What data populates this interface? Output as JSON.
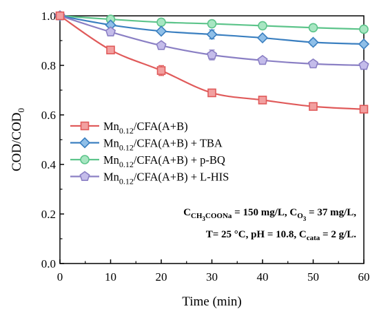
{
  "chart_data": {
    "type": "line",
    "xlabel": "Time (min)",
    "ylabel": "COD/COD",
    "ylabel_sub": "0",
    "xlim": [
      0,
      60
    ],
    "ylim": [
      0.0,
      1.0
    ],
    "x_ticks": [
      "0",
      "10",
      "20",
      "30",
      "40",
      "50",
      "60"
    ],
    "y_ticks": [
      "0.0",
      "0.2",
      "0.4",
      "0.6",
      "0.8",
      "1.0"
    ],
    "grid": false,
    "legend_placement": "center-left",
    "x": [
      0,
      10,
      20,
      30,
      40,
      50,
      60
    ],
    "series": [
      {
        "name": "Mn0.12/CFA(A+B)",
        "legend": {
          "pre": "Mn",
          "sub": "0.12",
          "post": "/CFA(A+B)"
        },
        "marker": "square",
        "color": "#e05a5a",
        "fill": "#f2a0a0",
        "values": [
          1.0,
          0.862,
          0.779,
          0.689,
          0.66,
          0.634,
          0.623
        ],
        "errors": [
          0,
          0.012,
          0.02,
          0.012,
          0.01,
          0.015,
          0.01
        ]
      },
      {
        "name": "Mn0.12/CFA(A+B) + TBA",
        "legend": {
          "pre": "Mn",
          "sub": "0.12",
          "post": "/CFA(A+B) + TBA"
        },
        "marker": "diamond",
        "color": "#3a7fc0",
        "fill": "#8fbfe8",
        "values": [
          1.0,
          0.963,
          0.938,
          0.925,
          0.911,
          0.893,
          0.886
        ],
        "errors": [
          0,
          0.008,
          0.01,
          0.018,
          0.01,
          0.012,
          0.008
        ]
      },
      {
        "name": "Mn0.12/CFA(A+B) + p-BQ",
        "legend": {
          "pre": "Mn",
          "sub": "0.12",
          "post": "/CFA(A+B) + p-BQ"
        },
        "marker": "circle",
        "color": "#5cc48a",
        "fill": "#a8e6c2",
        "values": [
          1.0,
          0.986,
          0.974,
          0.968,
          0.96,
          0.952,
          0.946
        ],
        "errors": [
          0,
          0.006,
          0.008,
          0.006,
          0.008,
          0.01,
          0.012
        ]
      },
      {
        "name": "Mn0.12/CFA(A+B) + L-HIS",
        "legend": {
          "pre": "Mn",
          "sub": "0.12",
          "post": "/CFA(A+B) + L-HIS"
        },
        "marker": "pentagon",
        "color": "#8a7fc4",
        "fill": "#c4bcea",
        "values": [
          1.0,
          0.935,
          0.88,
          0.842,
          0.82,
          0.806,
          0.8
        ],
        "errors": [
          0,
          0.012,
          0.012,
          0.02,
          0.01,
          0.012,
          0.008
        ]
      }
    ],
    "annotation_lines": [
      [
        {
          "t": "C",
          "s": ""
        },
        {
          "t": "CH",
          "s": "sub"
        },
        {
          "t": "3",
          "s": "subsub"
        },
        {
          "t": "COONa",
          "s": "sub"
        },
        {
          "t": " = 150 mg/L, C",
          "s": ""
        },
        {
          "t": "O",
          "s": "sub"
        },
        {
          "t": "3",
          "s": "subsub"
        },
        {
          "t": " = 37 mg/L,",
          "s": ""
        }
      ],
      [
        {
          "t": "T= 25 °C, pH = 10.8, C",
          "s": ""
        },
        {
          "t": "cata",
          "s": "sub"
        },
        {
          "t": " = 2 g/L.",
          "s": ""
        }
      ]
    ]
  }
}
